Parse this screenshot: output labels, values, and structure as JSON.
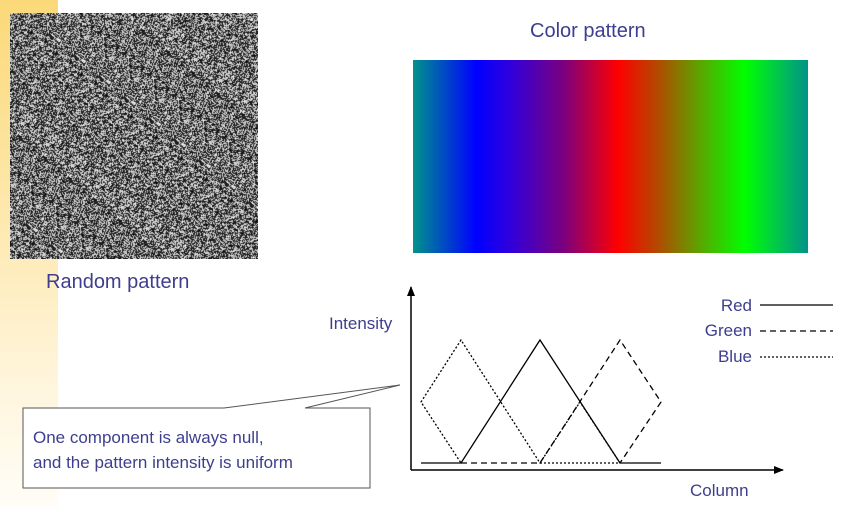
{
  "random_pattern": {
    "caption": "Random pattern"
  },
  "color_pattern": {
    "title": "Color pattern"
  },
  "chart": {
    "y_label": "Intensity",
    "x_label": "Column",
    "legend": [
      {
        "name": "Red",
        "style": "solid"
      },
      {
        "name": "Green",
        "style": "dashed"
      },
      {
        "name": "Blue",
        "style": "dotted"
      }
    ]
  },
  "callout": {
    "line1": "One component is always null,",
    "line2": "and the pattern intensity is uniform"
  },
  "colors": {
    "text": "#3d3e8f",
    "side_bar": "#fbd979"
  }
}
